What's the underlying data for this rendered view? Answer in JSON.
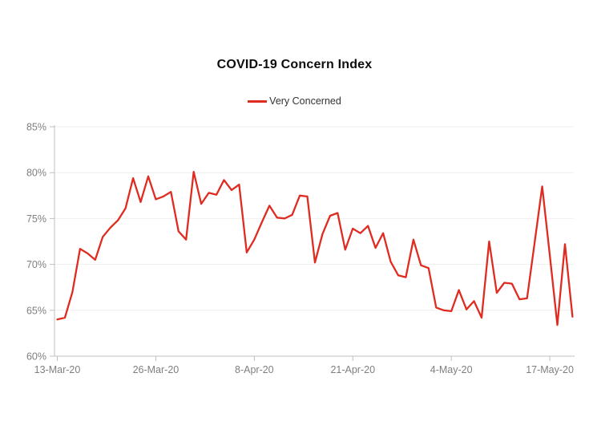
{
  "chart_data": {
    "type": "line",
    "title": "COVID-19 Concern Index",
    "legend_position": "top",
    "grid": "horizontal",
    "ylim": [
      60,
      85
    ],
    "ylabel": "",
    "xlabel": "",
    "y_ticks": [
      {
        "label": "85%",
        "value": 85
      },
      {
        "label": "80%",
        "value": 80
      },
      {
        "label": "75%",
        "value": 75
      },
      {
        "label": "70%",
        "value": 70
      },
      {
        "label": "65%",
        "value": 65
      },
      {
        "label": "60%",
        "value": 60
      }
    ],
    "x_ticks": [
      {
        "label": "13-Mar-20",
        "index": 0
      },
      {
        "label": "26-Mar-20",
        "index": 13
      },
      {
        "label": "8-Apr-20",
        "index": 26
      },
      {
        "label": "21-Apr-20",
        "index": 39
      },
      {
        "label": "4-May-20",
        "index": 52
      },
      {
        "label": "17-May-20",
        "index": 65
      }
    ],
    "x": [
      "13-Mar-20",
      "14-Mar-20",
      "15-Mar-20",
      "16-Mar-20",
      "17-Mar-20",
      "18-Mar-20",
      "19-Mar-20",
      "20-Mar-20",
      "21-Mar-20",
      "22-Mar-20",
      "23-Mar-20",
      "24-Mar-20",
      "25-Mar-20",
      "26-Mar-20",
      "27-Mar-20",
      "28-Mar-20",
      "29-Mar-20",
      "30-Mar-20",
      "31-Mar-20",
      "1-Apr-20",
      "2-Apr-20",
      "3-Apr-20",
      "4-Apr-20",
      "5-Apr-20",
      "6-Apr-20",
      "7-Apr-20",
      "8-Apr-20",
      "9-Apr-20",
      "10-Apr-20",
      "11-Apr-20",
      "12-Apr-20",
      "13-Apr-20",
      "14-Apr-20",
      "15-Apr-20",
      "16-Apr-20",
      "17-Apr-20",
      "18-Apr-20",
      "19-Apr-20",
      "20-Apr-20",
      "21-Apr-20",
      "22-Apr-20",
      "23-Apr-20",
      "24-Apr-20",
      "25-Apr-20",
      "26-Apr-20",
      "27-Apr-20",
      "28-Apr-20",
      "29-Apr-20",
      "30-Apr-20",
      "1-May-20",
      "2-May-20",
      "3-May-20",
      "4-May-20",
      "5-May-20",
      "6-May-20",
      "7-May-20",
      "8-May-20",
      "9-May-20",
      "10-May-20",
      "11-May-20",
      "12-May-20",
      "13-May-20",
      "14-May-20",
      "15-May-20",
      "16-May-20",
      "17-May-20",
      "18-May-20",
      "19-May-20",
      "20-May-20"
    ],
    "series": [
      {
        "name": "Very Concerned",
        "color": "#df2b20",
        "values": [
          64.0,
          64.2,
          67.0,
          71.7,
          71.2,
          70.5,
          73.0,
          74.0,
          74.8,
          76.1,
          79.4,
          76.8,
          79.6,
          77.1,
          77.4,
          77.9,
          73.6,
          72.7,
          80.1,
          76.6,
          77.8,
          77.6,
          79.2,
          78.1,
          78.7,
          71.3,
          72.7,
          74.6,
          76.4,
          75.1,
          75.0,
          75.4,
          77.5,
          77.4,
          70.2,
          73.3,
          75.3,
          75.6,
          71.6,
          73.9,
          73.4,
          74.2,
          71.8,
          73.4,
          70.3,
          68.8,
          68.6,
          72.7,
          69.9,
          69.6,
          65.3,
          65.0,
          64.9,
          67.2,
          65.1,
          66.0,
          64.2,
          72.5,
          66.9,
          68.0,
          67.9,
          66.2,
          66.3,
          72.4,
          78.5,
          71.0,
          63.4,
          72.2,
          64.3
        ]
      }
    ],
    "colors": {
      "grid": "#efefef",
      "axis": "#bfbfbf",
      "tick_text": "#7f7f7f",
      "title_text": "#0d0d0d"
    }
  }
}
